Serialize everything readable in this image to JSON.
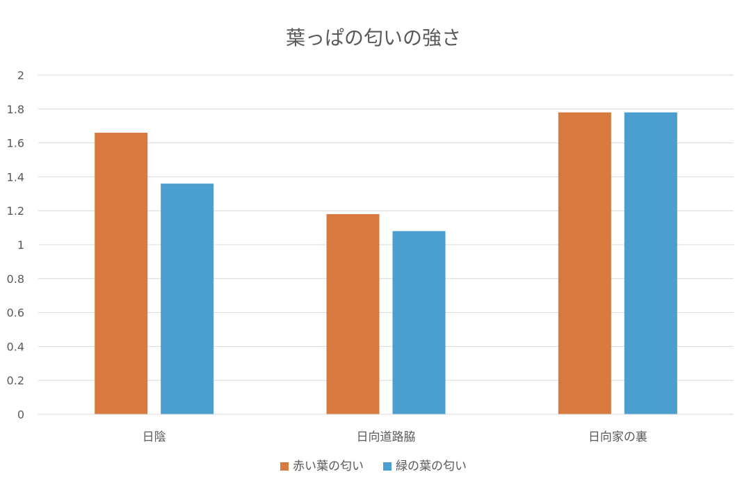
{
  "chart_data": {
    "type": "bar",
    "title": "葉っぱの匂いの強さ",
    "categories": [
      "日陰",
      "日向道路脇",
      "日向家の裏"
    ],
    "series": [
      {
        "name": "赤い葉の匂い",
        "color": "#D87A3F",
        "values": [
          1.66,
          1.18,
          1.78
        ]
      },
      {
        "name": "緑の葉の匂い",
        "color": "#4A9FD0",
        "values": [
          1.36,
          1.08,
          1.78
        ]
      }
    ],
    "ylim": [
      0,
      2
    ],
    "yticks": [
      "0",
      "0.2",
      "0.4",
      "0.6",
      "0.8",
      "1",
      "1.2",
      "1.4",
      "1.6",
      "1.8",
      "2"
    ],
    "grid": true,
    "legend": "bottom"
  }
}
